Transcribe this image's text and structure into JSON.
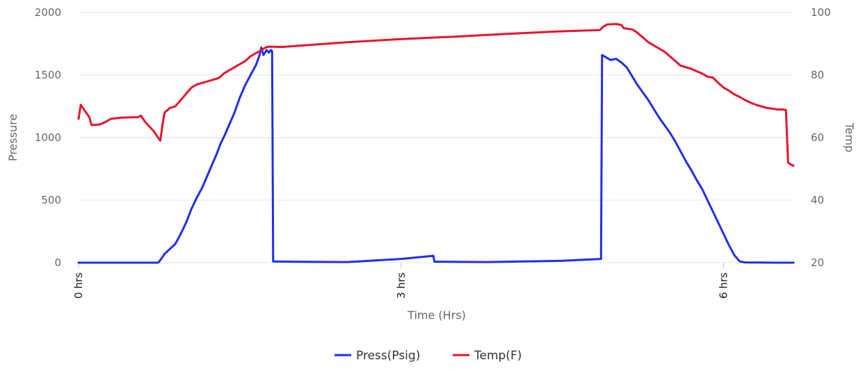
{
  "chart_data": {
    "type": "line",
    "xlabel": "Time (Hrs)",
    "ylabel_left": "Pressure",
    "ylabel_right": "Temp",
    "xlim": [
      0,
      6.65
    ],
    "ylim_left": [
      0,
      2000
    ],
    "ylim_right": [
      20,
      100
    ],
    "x_ticks": [
      {
        "value": 0,
        "label": "0 hrs"
      },
      {
        "value": 3,
        "label": "3 hrs"
      },
      {
        "value": 6,
        "label": "6 hrs"
      }
    ],
    "y_left_ticks": [
      {
        "value": 0,
        "label": "0"
      },
      {
        "value": 500,
        "label": "500"
      },
      {
        "value": 1000,
        "label": "1000"
      },
      {
        "value": 1500,
        "label": "1500"
      },
      {
        "value": 2000,
        "label": "2000"
      }
    ],
    "y_right_ticks": [
      {
        "value": 20,
        "label": "20"
      },
      {
        "value": 40,
        "label": "40"
      },
      {
        "value": 60,
        "label": "60"
      },
      {
        "value": 80,
        "label": "80"
      },
      {
        "value": 100,
        "label": "100"
      }
    ],
    "grid": true,
    "legend_position": "bottom-center",
    "series": [
      {
        "name": "Press(Psig)",
        "axis": "left",
        "color": "#1f2ee8",
        "points": [
          [
            0,
            0
          ],
          [
            0.5,
            0
          ],
          [
            0.74,
            0
          ],
          [
            0.76,
            20
          ],
          [
            0.8,
            70
          ],
          [
            0.85,
            110
          ],
          [
            0.9,
            150
          ],
          [
            0.95,
            230
          ],
          [
            1.0,
            320
          ],
          [
            1.05,
            430
          ],
          [
            1.1,
            520
          ],
          [
            1.15,
            600
          ],
          [
            1.2,
            700
          ],
          [
            1.25,
            800
          ],
          [
            1.28,
            860
          ],
          [
            1.32,
            950
          ],
          [
            1.36,
            1020
          ],
          [
            1.4,
            1100
          ],
          [
            1.45,
            1200
          ],
          [
            1.5,
            1320
          ],
          [
            1.55,
            1420
          ],
          [
            1.6,
            1500
          ],
          [
            1.65,
            1580
          ],
          [
            1.68,
            1650
          ],
          [
            1.7,
            1720
          ],
          [
            1.72,
            1660
          ],
          [
            1.75,
            1700
          ],
          [
            1.77,
            1680
          ],
          [
            1.79,
            1700
          ],
          [
            1.8,
            1690
          ],
          [
            1.81,
            10
          ],
          [
            2.0,
            8
          ],
          [
            2.5,
            5
          ],
          [
            3.0,
            30
          ],
          [
            3.3,
            55
          ],
          [
            3.31,
            8
          ],
          [
            3.8,
            5
          ],
          [
            4.5,
            15
          ],
          [
            4.86,
            30
          ],
          [
            4.87,
            1660
          ],
          [
            4.95,
            1620
          ],
          [
            5.0,
            1630
          ],
          [
            5.05,
            1600
          ],
          [
            5.1,
            1560
          ],
          [
            5.15,
            1490
          ],
          [
            5.2,
            1420
          ],
          [
            5.25,
            1360
          ],
          [
            5.3,
            1300
          ],
          [
            5.35,
            1230
          ],
          [
            5.4,
            1160
          ],
          [
            5.45,
            1100
          ],
          [
            5.5,
            1040
          ],
          [
            5.55,
            970
          ],
          [
            5.6,
            890
          ],
          [
            5.65,
            810
          ],
          [
            5.7,
            740
          ],
          [
            5.75,
            660
          ],
          [
            5.8,
            590
          ],
          [
            5.85,
            500
          ],
          [
            5.9,
            410
          ],
          [
            5.95,
            320
          ],
          [
            6.0,
            230
          ],
          [
            6.05,
            140
          ],
          [
            6.1,
            60
          ],
          [
            6.15,
            10
          ],
          [
            6.2,
            2
          ],
          [
            6.5,
            0
          ],
          [
            6.65,
            0
          ]
        ]
      },
      {
        "name": "Temp(F)",
        "axis": "right",
        "color": "#e8132c",
        "points": [
          [
            0,
            66
          ],
          [
            0.02,
            70.5
          ],
          [
            0.06,
            68.5
          ],
          [
            0.1,
            66.5
          ],
          [
            0.12,
            64
          ],
          [
            0.2,
            64.2
          ],
          [
            0.25,
            65
          ],
          [
            0.3,
            66
          ],
          [
            0.4,
            66.4
          ],
          [
            0.5,
            66.5
          ],
          [
            0.55,
            66.5
          ],
          [
            0.58,
            67
          ],
          [
            0.62,
            65
          ],
          [
            0.7,
            62
          ],
          [
            0.75,
            59.5
          ],
          [
            0.76,
            59
          ],
          [
            0.78,
            64
          ],
          [
            0.8,
            68
          ],
          [
            0.85,
            69.5
          ],
          [
            0.9,
            70
          ],
          [
            0.95,
            72
          ],
          [
            1.0,
            74
          ],
          [
            1.05,
            76
          ],
          [
            1.1,
            77
          ],
          [
            1.15,
            77.5
          ],
          [
            1.2,
            78
          ],
          [
            1.25,
            78.5
          ],
          [
            1.3,
            79
          ],
          [
            1.32,
            79.5
          ],
          [
            1.35,
            80.5
          ],
          [
            1.4,
            81.5
          ],
          [
            1.45,
            82.5
          ],
          [
            1.5,
            83.5
          ],
          [
            1.55,
            84.5
          ],
          [
            1.6,
            86
          ],
          [
            1.65,
            87
          ],
          [
            1.7,
            88
          ],
          [
            1.75,
            89
          ],
          [
            1.8,
            89.1
          ],
          [
            1.85,
            89
          ],
          [
            1.9,
            89
          ],
          [
            2.5,
            90.5
          ],
          [
            3.0,
            91.5
          ],
          [
            3.5,
            92.3
          ],
          [
            4.0,
            93.2
          ],
          [
            4.5,
            94
          ],
          [
            4.85,
            94.4
          ],
          [
            4.88,
            95.5
          ],
          [
            4.92,
            96.2
          ],
          [
            5.0,
            96.3
          ],
          [
            5.05,
            96
          ],
          [
            5.07,
            95
          ],
          [
            5.15,
            94.6
          ],
          [
            5.2,
            93.5
          ],
          [
            5.25,
            92
          ],
          [
            5.3,
            90.5
          ],
          [
            5.35,
            89.5
          ],
          [
            5.45,
            87.5
          ],
          [
            5.55,
            84.5
          ],
          [
            5.6,
            83
          ],
          [
            5.7,
            82
          ],
          [
            5.75,
            81.2
          ],
          [
            5.8,
            80.5
          ],
          [
            5.85,
            79.5
          ],
          [
            5.9,
            79.2
          ],
          [
            5.95,
            77.5
          ],
          [
            6.0,
            76
          ],
          [
            6.05,
            75
          ],
          [
            6.1,
            73.8
          ],
          [
            6.15,
            73
          ],
          [
            6.2,
            72
          ],
          [
            6.25,
            71.2
          ],
          [
            6.3,
            70.5
          ],
          [
            6.35,
            70
          ],
          [
            6.4,
            69.5
          ],
          [
            6.45,
            69.3
          ],
          [
            6.5,
            69
          ],
          [
            6.55,
            69
          ],
          [
            6.58,
            68.8
          ],
          [
            6.6,
            52
          ],
          [
            6.62,
            51.5
          ],
          [
            6.65,
            51
          ]
        ]
      }
    ]
  }
}
